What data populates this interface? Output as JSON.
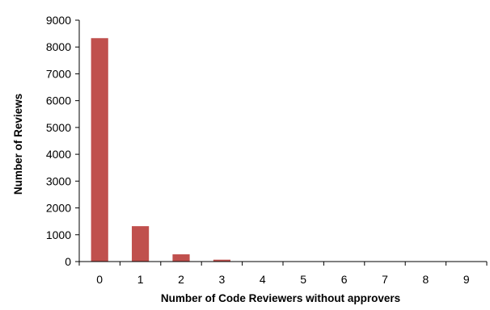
{
  "chart_data": {
    "type": "bar",
    "title": "",
    "xlabel": "Number of Code Reviewers without approvers",
    "ylabel": "Number of Reviews",
    "categories": [
      "0",
      "1",
      "2",
      "3",
      "4",
      "5",
      "6",
      "7",
      "8",
      "9"
    ],
    "values": [
      8330,
      1320,
      270,
      70,
      8,
      3,
      2,
      1,
      1,
      0
    ],
    "ylim": [
      0,
      9000
    ],
    "yticks": [
      "0",
      "1000",
      "2000",
      "3000",
      "4000",
      "5000",
      "6000",
      "7000",
      "8000",
      "9000"
    ],
    "grid": false,
    "legend": "none",
    "colors": {
      "bar": "#c0504d",
      "axis": "#000000"
    }
  }
}
